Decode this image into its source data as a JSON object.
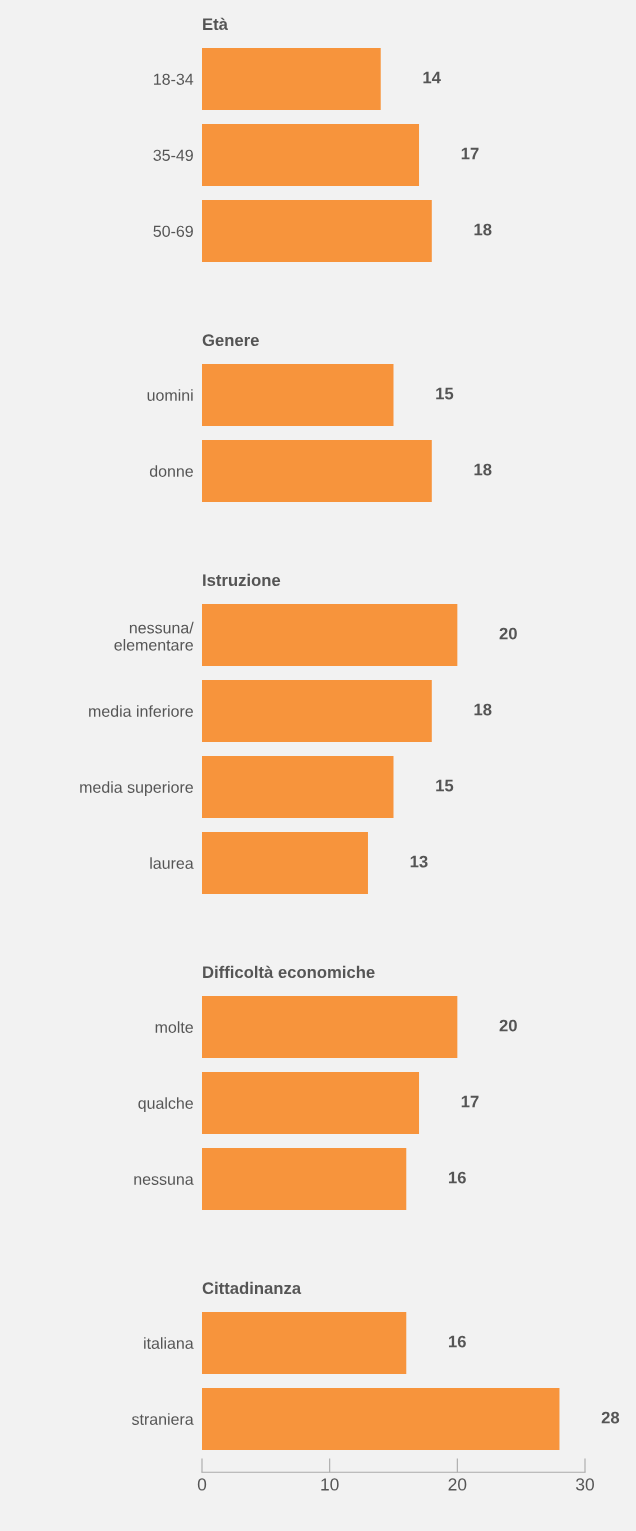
{
  "chart_data": [
    {
      "type": "bar",
      "orientation": "horizontal",
      "title": "Età",
      "categories": [
        "18-34",
        "35-49",
        "50-69"
      ],
      "values": [
        14,
        17,
        18
      ],
      "color": "#f7943c",
      "data_labels": true,
      "tick_labels": "y"
    },
    {
      "type": "bar",
      "orientation": "horizontal",
      "title": "Genere",
      "categories": [
        "uomini",
        "donne"
      ],
      "values": [
        15,
        18
      ],
      "color": "#f7943c",
      "data_labels": true,
      "tick_labels": "y"
    },
    {
      "type": "bar",
      "orientation": "horizontal",
      "title": "Istruzione",
      "categories": [
        "nessuna/\nelementare",
        "media inferiore",
        "media superiore",
        "laurea"
      ],
      "values": [
        20,
        18,
        15,
        13
      ],
      "color": "#f7943c",
      "data_labels": true,
      "tick_labels": "y"
    },
    {
      "type": "bar",
      "orientation": "horizontal",
      "title": "Difficoltà economiche",
      "categories": [
        "molte",
        "qualche",
        "nessuna"
      ],
      "values": [
        20,
        17,
        16
      ],
      "color": "#f7943c",
      "data_labels": true,
      "tick_labels": "y"
    },
    {
      "type": "bar",
      "orientation": "horizontal",
      "title": "Cittadinanza",
      "categories": [
        "italiana",
        "straniera"
      ],
      "values": [
        16,
        28
      ],
      "color": "#f7943c",
      "data_labels": true,
      "xlim": [
        0,
        30
      ],
      "xticks": [
        0,
        10,
        20,
        30
      ]
    }
  ]
}
